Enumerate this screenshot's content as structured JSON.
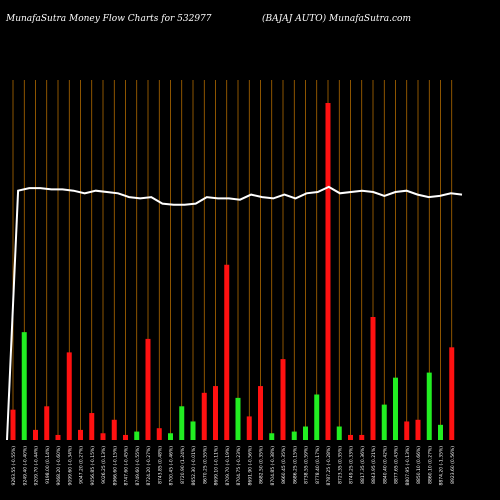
{
  "header": {
    "left": "MunafaSutra  Money Flow  Charts for 532977",
    "right": "(BAJAJ AUTO) MunafaSutra.com"
  },
  "colors": {
    "background": "#000000",
    "gridline": "#c87800",
    "up": "#22ee22",
    "down": "#ff1111",
    "line": "#ffffff"
  },
  "chart_data": {
    "type": "bar",
    "title": "MunafaSutra  Money Flow  Charts for 532977",
    "subtitle": "(BAJAJ AUTO) MunafaSutra.com",
    "bar_scale_max": 100,
    "line_scale_max": 100,
    "categories": [
      "9263.55 (-0.55%)",
      "9249.40 (-0.40%)",
      "9209.70 (-0.44%)",
      "9198.00 (0.14%)",
      "9068.20 (-0.60%)",
      "9099.60 (-0.34%)",
      "9047.20 (0.27%)",
      "9056.85 (-0.15%)",
      "9026.25 (0.13%)",
      "8966.60 (-0.15%)",
      "8747.60 (-0.45%)",
      "8749.60 (-0.55%)",
      "8724.20 (-0.27%)",
      "8743.85 (0.48%)",
      "8700.45 (-0.46%)",
      "8720.90 (1.24%)",
      "8652.30 (-0.01%)",
      "8670.25 (0.55%)",
      "8699.10 (-0.11%)",
      "8709.70 (-0.19%)",
      "8704.75 (-0.23%)",
      "8691.90 (-0.56%)",
      "8682.50 (0.35%)",
      "8704.85 (-0.38%)",
      "8660.45 (0.35%)",
      "8686.25 (0.15%)",
      "8738.55 (0.59%)",
      "8778.40 (0.17%)",
      "8787.25 (-0.28%)",
      "8723.35 (0.35%)",
      "8749.25 (0.33%)",
      "8817.35 (0.36%)",
      "8843.95 (0.21%)",
      "8840.40 (0.42%)",
      "8877.65 (0.43%)",
      "8807.95 (-0.13%)",
      "8850.10 (0.66%)",
      "8860.10 (0.27%)",
      "8874.20 (-1.35%)",
      "8923.60 (0.56%)"
    ],
    "bars": [
      {
        "value": 9,
        "direction": "down"
      },
      {
        "value": 32,
        "direction": "up"
      },
      {
        "value": 3,
        "direction": "down"
      },
      {
        "value": 10,
        "direction": "down"
      },
      {
        "value": 1.5,
        "direction": "down"
      },
      {
        "value": 26,
        "direction": "down"
      },
      {
        "value": 3,
        "direction": "down"
      },
      {
        "value": 8,
        "direction": "down"
      },
      {
        "value": 2,
        "direction": "down"
      },
      {
        "value": 6,
        "direction": "down"
      },
      {
        "value": 1.5,
        "direction": "down"
      },
      {
        "value": 2.5,
        "direction": "up"
      },
      {
        "value": 30,
        "direction": "down"
      },
      {
        "value": 3.5,
        "direction": "down"
      },
      {
        "value": 2,
        "direction": "up"
      },
      {
        "value": 10,
        "direction": "up"
      },
      {
        "value": 5.5,
        "direction": "up"
      },
      {
        "value": 14,
        "direction": "down"
      },
      {
        "value": 16,
        "direction": "down"
      },
      {
        "value": 52,
        "direction": "down"
      },
      {
        "value": 12.5,
        "direction": "up"
      },
      {
        "value": 7,
        "direction": "down"
      },
      {
        "value": 16,
        "direction": "down"
      },
      {
        "value": 2,
        "direction": "up"
      },
      {
        "value": 24,
        "direction": "down"
      },
      {
        "value": 2.5,
        "direction": "up"
      },
      {
        "value": 4,
        "direction": "up"
      },
      {
        "value": 13.5,
        "direction": "up"
      },
      {
        "value": 100,
        "direction": "down"
      },
      {
        "value": 4,
        "direction": "up"
      },
      {
        "value": 1.5,
        "direction": "down"
      },
      {
        "value": 1.5,
        "direction": "down"
      },
      {
        "value": 36.5,
        "direction": "down"
      },
      {
        "value": 10.5,
        "direction": "up"
      },
      {
        "value": 18.5,
        "direction": "up"
      },
      {
        "value": 5.5,
        "direction": "down"
      },
      {
        "value": 6,
        "direction": "down"
      },
      {
        "value": 20,
        "direction": "up"
      },
      {
        "value": 4.5,
        "direction": "up"
      },
      {
        "value": 27.5,
        "direction": "down"
      }
    ],
    "line": [
      0,
      97,
      98,
      98,
      97.5,
      97.5,
      97,
      96,
      97,
      96.5,
      96,
      94.5,
      94,
      94.5,
      92,
      91.5,
      91.5,
      92,
      94.5,
      94,
      94,
      93.5,
      95.5,
      94.5,
      94,
      95.5,
      94,
      96,
      96.5,
      98.5,
      96,
      96.5,
      97,
      96.5,
      95,
      96.5,
      97,
      95.5,
      94.5,
      95,
      96,
      95.5
    ],
    "xlabel": "",
    "ylabel": "",
    "grid": true,
    "legend": "none"
  }
}
